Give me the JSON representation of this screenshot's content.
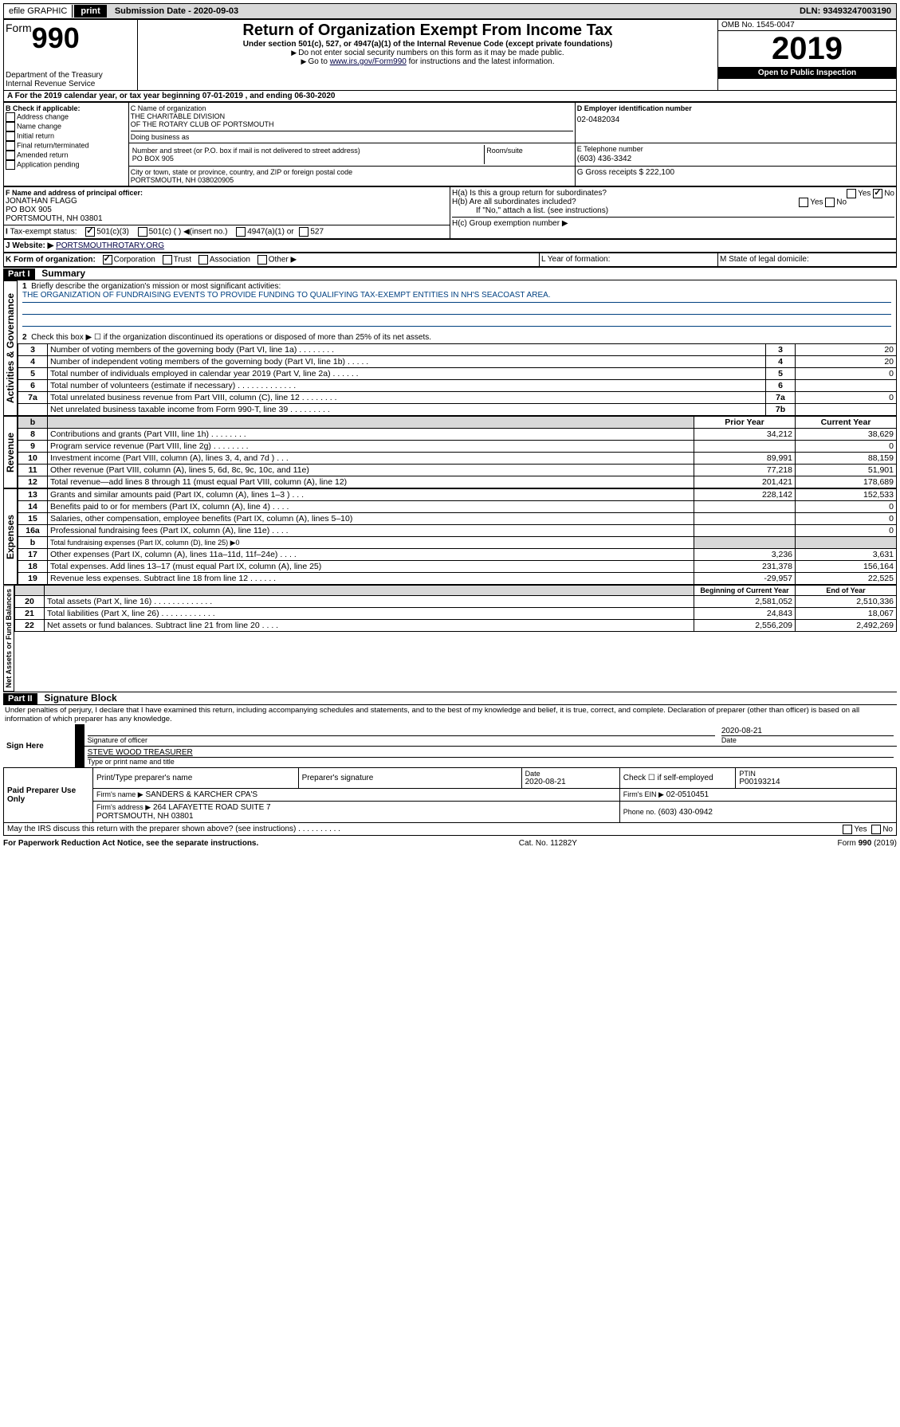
{
  "topbar": {
    "efile": "efile GRAPHIC",
    "print": "print",
    "sub_date_label": "Submission Date - 2020-09-03",
    "dln": "DLN: 93493247003190"
  },
  "header": {
    "form_word": "Form",
    "form_num": "990",
    "title": "Return of Organization Exempt From Income Tax",
    "subtitle": "Under section 501(c), 527, or 4947(a)(1) of the Internal Revenue Code (except private foundations)",
    "note1": "Do not enter social security numbers on this form as it may be made public.",
    "note2_a": "Go to ",
    "note2_link": "www.irs.gov/Form990",
    "note2_b": " for instructions and the latest information.",
    "dept": "Department of the Treasury\nInternal Revenue Service",
    "omb": "OMB No. 1545-0047",
    "year": "2019",
    "inspect": "Open to Public Inspection"
  },
  "period": {
    "line": "For the 2019 calendar year, or tax year beginning 07-01-2019   , and ending 06-30-2020"
  },
  "boxB": {
    "title": "B Check if applicable:",
    "opts": [
      "Address change",
      "Name change",
      "Initial return",
      "Final return/terminated",
      "Amended return",
      "Application pending"
    ]
  },
  "boxC": {
    "label_name": "C Name of organization",
    "name": "THE CHARITABLE DIVISION\nOF THE ROTARY CLUB OF PORTSMOUTH",
    "dba_label": "Doing business as",
    "addr_label": "Number and street (or P.O. box if mail is not delivered to street address)",
    "room_label": "Room/suite",
    "addr": "PO BOX 905",
    "city_label": "City or town, state or province, country, and ZIP or foreign postal code",
    "city": "PORTSMOUTH, NH  038020905"
  },
  "boxD": {
    "label": "D Employer identification number",
    "value": "02-0482034"
  },
  "boxE": {
    "label": "E Telephone number",
    "value": "(603) 436-3342"
  },
  "boxG": {
    "label": "G Gross receipts $ 222,100"
  },
  "boxF": {
    "label": "F  Name and address of principal officer:",
    "name": "JONATHAN FLAGG",
    "addr1": "PO BOX 905",
    "addr2": "PORTSMOUTH, NH  03801"
  },
  "boxH": {
    "a": "H(a)  Is this a group return for subordinates?",
    "b": "H(b)  Are all subordinates included?",
    "b_note": "If \"No,\" attach a list. (see instructions)",
    "c": "H(c)  Group exemption number ▶",
    "yes": "Yes",
    "no": "No"
  },
  "boxI": {
    "label": "Tax-exempt status:",
    "o1": "501(c)(3)",
    "o2": "501(c) (   ) ◀(insert no.)",
    "o3": "4947(a)(1) or",
    "o4": "527"
  },
  "boxJ": {
    "label": "J   Website: ▶",
    "value": "PORTSMOUTHROTARY.ORG"
  },
  "boxK": {
    "label": "K Form of organization:",
    "o1": "Corporation",
    "o2": "Trust",
    "o3": "Association",
    "o4": "Other ▶"
  },
  "boxL": {
    "label": "L Year of formation:"
  },
  "boxM": {
    "label": "M State of legal domicile:"
  },
  "part1": {
    "title": "Part I",
    "label": "Summary"
  },
  "summary": {
    "l1": "Briefly describe the organization's mission or most significant activities:",
    "l1_text": "THE ORGANIZATION OF FUNDRAISING EVENTS TO PROVIDE FUNDING TO QUALIFYING TAX-EXEMPT ENTITIES IN NH'S SEACOAST AREA.",
    "l2": "Check this box ▶ ☐  if the organization discontinued its operations or disposed of more than 25% of its net assets.",
    "rows_top": [
      {
        "n": "3",
        "t": "Number of voting members of the governing body (Part VI, line 1a)  .   .   .   .   .   .   .   .",
        "rn": "3",
        "v": "20"
      },
      {
        "n": "4",
        "t": "Number of independent voting members of the governing body (Part VI, line 1b)  .   .   .   .   .",
        "rn": "4",
        "v": "20"
      },
      {
        "n": "5",
        "t": "Total number of individuals employed in calendar year 2019 (Part V, line 2a)  .   .   .   .   .   .",
        "rn": "5",
        "v": "0"
      },
      {
        "n": "6",
        "t": "Total number of volunteers (estimate if necessary)  .   .   .   .   .   .   .   .   .   .   .   .   .",
        "rn": "6",
        "v": ""
      },
      {
        "n": "7a",
        "t": "Total unrelated business revenue from Part VIII, column (C), line 12  .   .   .   .   .   .   .   .",
        "rn": "7a",
        "v": "0"
      },
      {
        "n": "",
        "t": "Net unrelated business taxable income from Form 990-T, line 39  .   .   .   .   .   .   .   .   .",
        "rn": "7b",
        "v": ""
      }
    ],
    "col_prior": "Prior Year",
    "col_current": "Current Year",
    "rows_rev": [
      {
        "n": "8",
        "t": "Contributions and grants (Part VIII, line 1h)  .   .   .   .   .   .   .   .",
        "p": "34,212",
        "c": "38,629"
      },
      {
        "n": "9",
        "t": "Program service revenue (Part VIII, line 2g)  .   .   .   .   .   .   .   .",
        "p": "",
        "c": "0"
      },
      {
        "n": "10",
        "t": "Investment income (Part VIII, column (A), lines 3, 4, and 7d )  .   .   .",
        "p": "89,991",
        "c": "88,159"
      },
      {
        "n": "11",
        "t": "Other revenue (Part VIII, column (A), lines 5, 6d, 8c, 9c, 10c, and 11e)",
        "p": "77,218",
        "c": "51,901"
      },
      {
        "n": "12",
        "t": "Total revenue—add lines 8 through 11 (must equal Part VIII, column (A), line 12)",
        "p": "201,421",
        "c": "178,689"
      }
    ],
    "rows_exp": [
      {
        "n": "13",
        "t": "Grants and similar amounts paid (Part IX, column (A), lines 1–3 )  .   .   .",
        "p": "228,142",
        "c": "152,533"
      },
      {
        "n": "14",
        "t": "Benefits paid to or for members (Part IX, column (A), line 4)  .   .   .   .",
        "p": "",
        "c": "0"
      },
      {
        "n": "15",
        "t": "Salaries, other compensation, employee benefits (Part IX, column (A), lines 5–10)",
        "p": "",
        "c": "0"
      },
      {
        "n": "16a",
        "t": "Professional fundraising fees (Part IX, column (A), line 11e)  .   .   .   .",
        "p": "",
        "c": "0"
      }
    ],
    "row16b": {
      "n": "b",
      "t": "Total fundraising expenses (Part IX, column (D), line 25) ▶0"
    },
    "rows_exp2": [
      {
        "n": "17",
        "t": "Other expenses (Part IX, column (A), lines 11a–11d, 11f–24e)  .   .   .   .",
        "p": "3,236",
        "c": "3,631"
      },
      {
        "n": "18",
        "t": "Total expenses. Add lines 13–17 (must equal Part IX, column (A), line 25)",
        "p": "231,378",
        "c": "156,164"
      },
      {
        "n": "19",
        "t": "Revenue less expenses. Subtract line 18 from line 12  .   .   .   .   .   .",
        "p": "-29,957",
        "c": "22,525"
      }
    ],
    "col_begin": "Beginning of Current Year",
    "col_end": "End of Year",
    "rows_net": [
      {
        "n": "20",
        "t": "Total assets (Part X, line 16)  .   .   .   .   .   .   .   .   .   .   .   .   .",
        "p": "2,581,052",
        "c": "2,510,336"
      },
      {
        "n": "21",
        "t": "Total liabilities (Part X, line 26)  .   .   .   .   .   .   .   .   .   .   .   .",
        "p": "24,843",
        "c": "18,067"
      },
      {
        "n": "22",
        "t": "Net assets or fund balances. Subtract line 21 from line 20  .   .   .   .",
        "p": "2,556,209",
        "c": "2,492,269"
      }
    ],
    "side_gov": "Activities & Governance",
    "side_rev": "Revenue",
    "side_exp": "Expenses",
    "side_net": "Net Assets or Fund Balances"
  },
  "part2": {
    "title": "Part II",
    "label": "Signature Block"
  },
  "perjury": "Under penalties of perjury, I declare that I have examined this return, including accompanying schedules and statements, and to the best of my knowledge and belief, it is true, correct, and complete. Declaration of preparer (other than officer) is based on all information of which preparer has any knowledge.",
  "sign": {
    "here": "Sign Here",
    "sig_officer": "Signature of officer",
    "date": "2020-08-21",
    "date_label": "Date",
    "name": "STEVE WOOD TREASURER",
    "name_label": "Type or print name and title",
    "paid": "Paid Preparer Use Only",
    "h1": "Print/Type preparer's name",
    "h2": "Preparer's signature",
    "h3": "Date",
    "h4": "Check ☐ if self-employed",
    "h5": "PTIN",
    "h3v": "2020-08-21",
    "h5v": "P00193214",
    "firm_name_l": "Firm's name   ▶",
    "firm_name_v": "SANDERS & KARCHER CPA'S",
    "firm_ein_l": "Firm's EIN ▶",
    "firm_ein_v": "02-0510451",
    "firm_addr_l": "Firm's address ▶",
    "firm_addr_v": "264 LAFAYETTE ROAD SUITE 7\nPORTSMOUTH, NH  03801",
    "phone_l": "Phone no.",
    "phone_v": "(603) 430-0942"
  },
  "discuss": "May the IRS discuss this return with the preparer shown above? (see instructions)   .   .   .   .   .   .   .   .   .   .",
  "footer": {
    "left": "For Paperwork Reduction Act Notice, see the separate instructions.",
    "mid": "Cat. No. 11282Y",
    "right": "Form 990 (2019)"
  }
}
